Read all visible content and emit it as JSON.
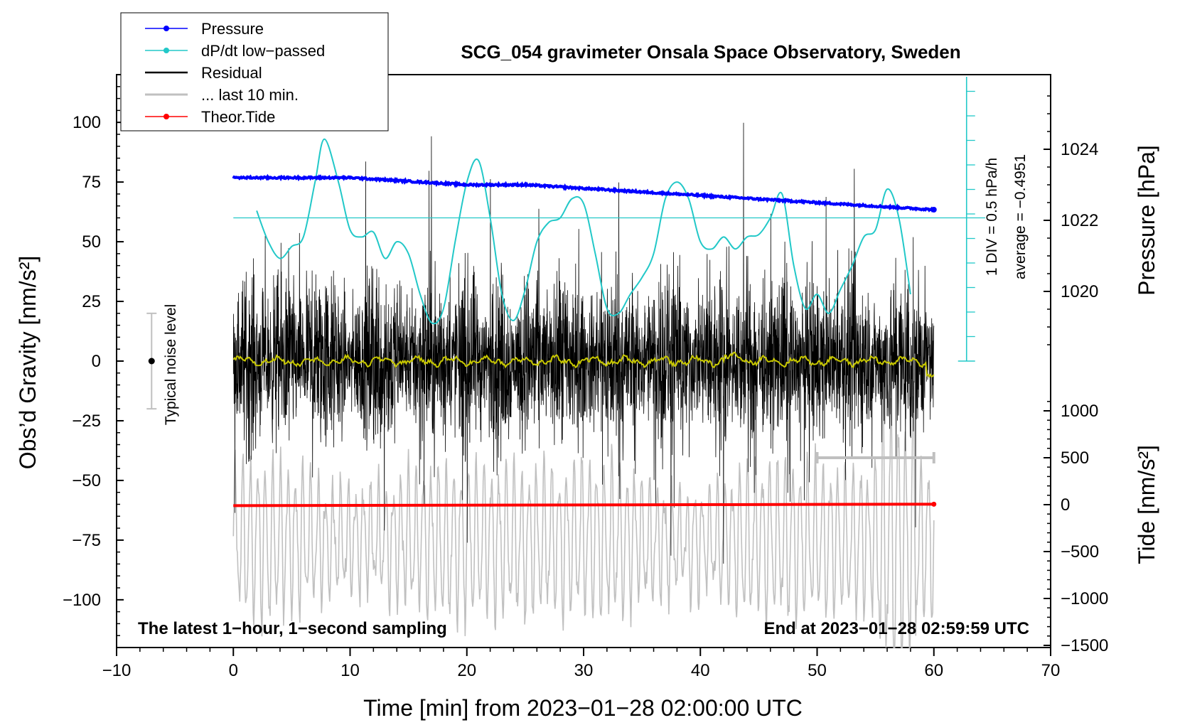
{
  "colors": {
    "pressure": "#0000ff",
    "dpdt": "#22c8c8",
    "residual": "#000000",
    "last10": "#c0c0c0",
    "tide": "#ff0000",
    "smooth": "#c8c800"
  },
  "chart_data": {
    "type": "line",
    "title": "SCG_054 gravimeter Onsala Space Observatory, Sweden",
    "xlabel": "Time [min] from 2023−01−28 02:00:00 UTC",
    "ylabel_left": "Obs’d Gravity [nm/s²]",
    "ylabel_right_pressure": "Pressure [hPa]",
    "ylabel_right_tide": "Tide [nm/s²]",
    "xlim": [
      -10,
      70
    ],
    "ylim_left": [
      -120,
      120
    ],
    "pressure_lim": [
      1018,
      1026
    ],
    "tide_lim": [
      -1500,
      1500
    ],
    "x_ticks": [
      "−10",
      "0",
      "10",
      "20",
      "30",
      "40",
      "50",
      "60",
      "70"
    ],
    "y_ticks_left": [
      "100",
      "75",
      "50",
      "25",
      "0",
      "−25",
      "−50",
      "−75",
      "−100"
    ],
    "pressure_ticks": [
      "1024",
      "1022",
      "1020"
    ],
    "tide_ticks": [
      "1000",
      "500",
      "0",
      "−500",
      "−1000",
      "−1500"
    ],
    "annotation_left": "The latest 1−hour, 1−second sampling",
    "annotation_right": "End at 2023−01−28 02:59:59 UTC",
    "noise_label": "Typical noise level",
    "noise_level": 20,
    "dpdt_scale_text": "1 DIV = 0.5 hPa/h",
    "dpdt_average_text": "average = −0.4951",
    "legend": [
      "Pressure",
      "dP/dt low−passed",
      "Residual",
      "... last 10 min.",
      "Theor.Tide"
    ],
    "series": [
      {
        "name": "Pressure",
        "unit": "hPa",
        "points": [
          [
            0,
            1023.2
          ],
          [
            5,
            1023.2
          ],
          [
            10,
            1023.2
          ],
          [
            15,
            1023.1
          ],
          [
            20,
            1023.0
          ],
          [
            25,
            1023.0
          ],
          [
            30,
            1022.9
          ],
          [
            35,
            1022.8
          ],
          [
            40,
            1022.7
          ],
          [
            45,
            1022.6
          ],
          [
            50,
            1022.5
          ],
          [
            55,
            1022.4
          ],
          [
            60,
            1022.3
          ]
        ]
      },
      {
        "name": "dP/dt low−passed",
        "unit": "nm/s² display",
        "points": [
          [
            2,
            63
          ],
          [
            3,
            50
          ],
          [
            4,
            43
          ],
          [
            5,
            48
          ],
          [
            6,
            52
          ],
          [
            7,
            75
          ],
          [
            7.8,
            93
          ],
          [
            9,
            75
          ],
          [
            10,
            55
          ],
          [
            11,
            52
          ],
          [
            12,
            54
          ],
          [
            13,
            43
          ],
          [
            14,
            50
          ],
          [
            15,
            45
          ],
          [
            16,
            28
          ],
          [
            17,
            16
          ],
          [
            18,
            22
          ],
          [
            19,
            50
          ],
          [
            20,
            75
          ],
          [
            21,
            84
          ],
          [
            22,
            60
          ],
          [
            23,
            28
          ],
          [
            24,
            17
          ],
          [
            25,
            30
          ],
          [
            26,
            50
          ],
          [
            27,
            58
          ],
          [
            28,
            60
          ],
          [
            29,
            68
          ],
          [
            30,
            66
          ],
          [
            31,
            45
          ],
          [
            32,
            22
          ],
          [
            33,
            20
          ],
          [
            34,
            28
          ],
          [
            35,
            35
          ],
          [
            36,
            45
          ],
          [
            37,
            68
          ],
          [
            38,
            75
          ],
          [
            39,
            68
          ],
          [
            40,
            50
          ],
          [
            41,
            47
          ],
          [
            42,
            52
          ],
          [
            43,
            47
          ],
          [
            44,
            52
          ],
          [
            45,
            53
          ],
          [
            46,
            60
          ],
          [
            47,
            70
          ],
          [
            48,
            40
          ],
          [
            49,
            22
          ],
          [
            50,
            28
          ],
          [
            51,
            20
          ],
          [
            52,
            30
          ],
          [
            53,
            40
          ],
          [
            54,
            52
          ],
          [
            55,
            55
          ],
          [
            56,
            72
          ],
          [
            57,
            60
          ],
          [
            58,
            28
          ]
        ]
      },
      {
        "name": "Residual",
        "unit": "nm/s²",
        "x_range": [
          0,
          60
        ],
        "amplitude": 35
      },
      {
        "name": "... last 10 min.",
        "unit": "nm/s² display",
        "x_range": [
          0,
          60
        ],
        "mean": -75,
        "amplitude": 30
      },
      {
        "name": "Theor.Tide",
        "unit": "nm/s²",
        "points": [
          [
            0,
            -10
          ],
          [
            60,
            5
          ]
        ]
      }
    ]
  }
}
